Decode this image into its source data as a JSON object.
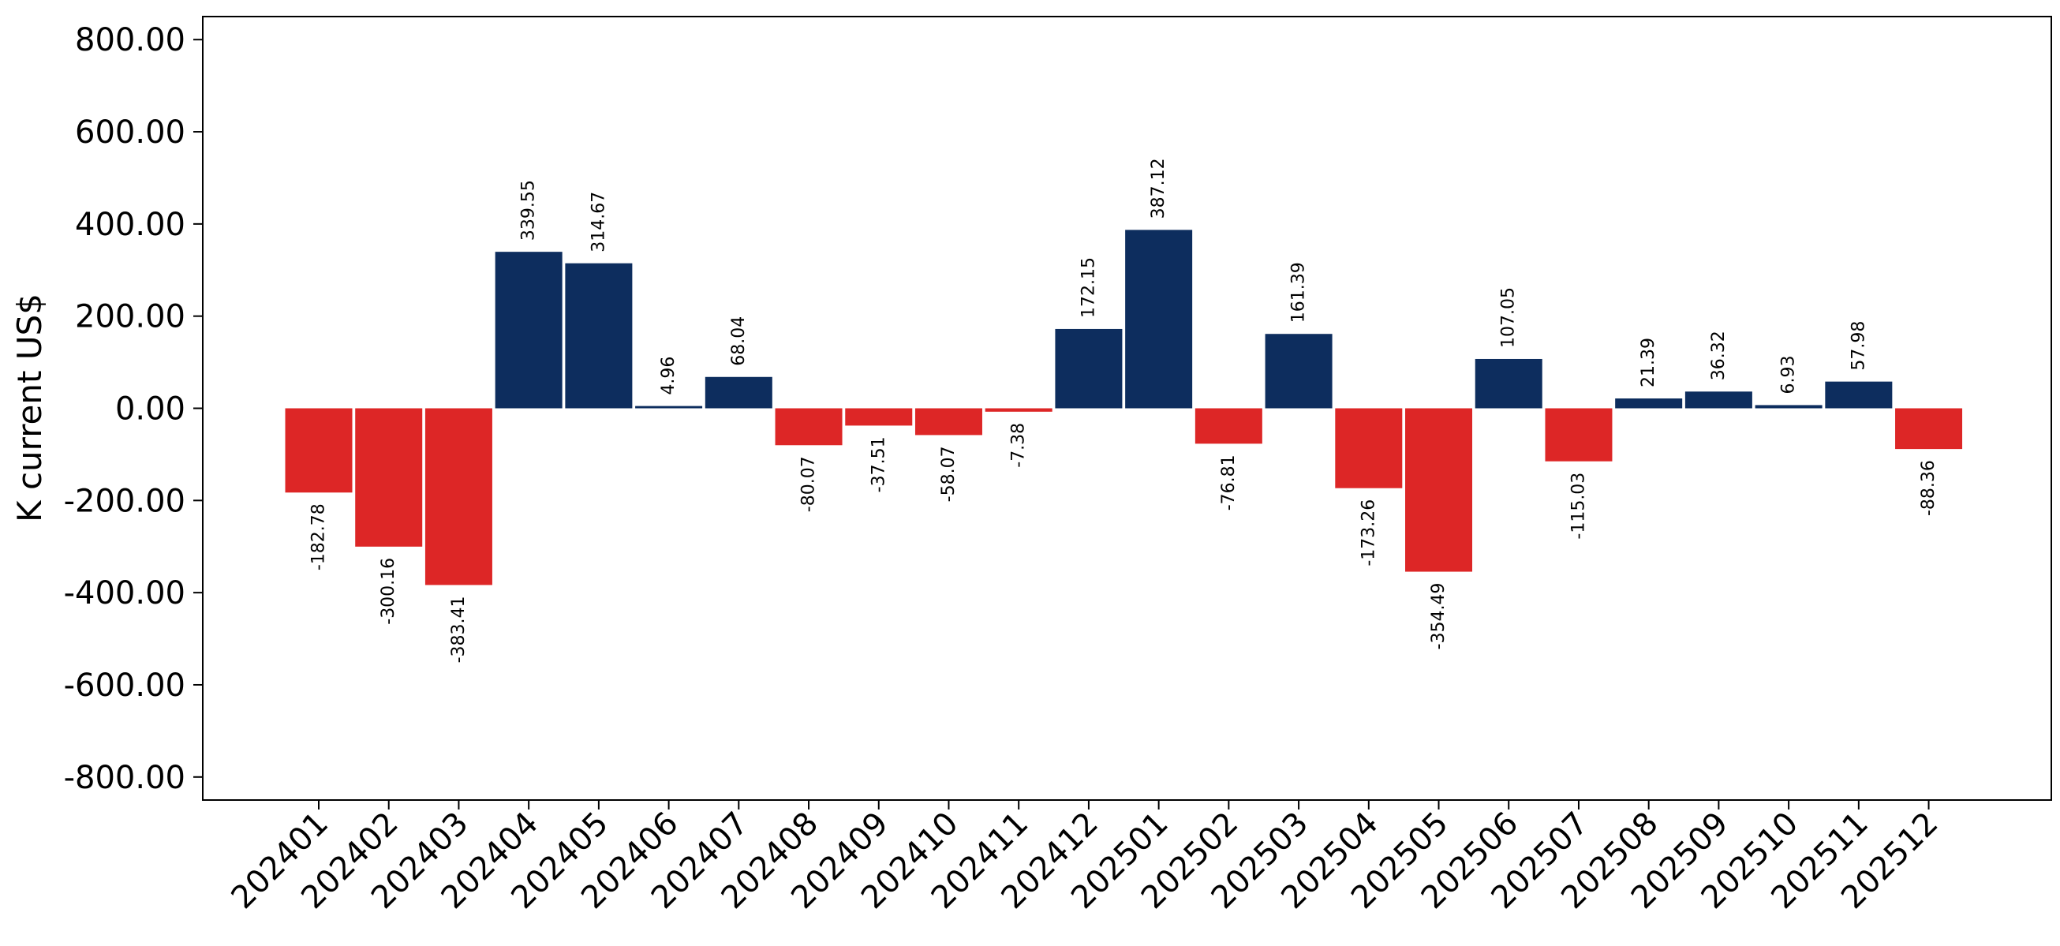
{
  "chart_data": {
    "type": "bar",
    "title": "",
    "xlabel": "",
    "ylabel": "K current US$",
    "ylim": [
      -850,
      850
    ],
    "yticks": [
      -800,
      -600,
      -400,
      -200,
      0,
      200,
      400,
      600,
      800
    ],
    "ytick_labels": [
      "-800.00",
      "-600.00",
      "-400.00",
      "-200.00",
      "0.00",
      "200.00",
      "400.00",
      "600.00",
      "800.00"
    ],
    "grid": false,
    "legend": "none",
    "categories": [
      "202401",
      "202402",
      "202403",
      "202404",
      "202405",
      "202406",
      "202407",
      "202408",
      "202409",
      "202410",
      "202411",
      "202412",
      "202501",
      "202502",
      "202503",
      "202504",
      "202505",
      "202506",
      "202507",
      "202508",
      "202509",
      "202510",
      "202511",
      "202512"
    ],
    "values": [
      -182.78,
      -300.16,
      -383.41,
      339.55,
      314.67,
      4.96,
      68.04,
      -80.07,
      -37.51,
      -58.07,
      -7.38,
      172.15,
      387.12,
      -76.81,
      161.39,
      -173.26,
      -354.49,
      107.05,
      -115.03,
      21.39,
      36.32,
      6.93,
      57.98,
      -88.36
    ],
    "data_labels": [
      "-182.78",
      "-300.16",
      "-383.41",
      "339.55",
      "314.67",
      "4.96",
      "68.04",
      "-80.07",
      "-37.51",
      "-58.07",
      "-7.38",
      "172.15",
      "387.12",
      "-76.81",
      "161.39",
      "-173.26",
      "-354.49",
      "107.05",
      "-115.03",
      "21.39",
      "36.32",
      "6.93",
      "57.98",
      "-88.36"
    ],
    "colors": {
      "positive": "#0d2d5e",
      "negative": "#dd2626"
    }
  }
}
